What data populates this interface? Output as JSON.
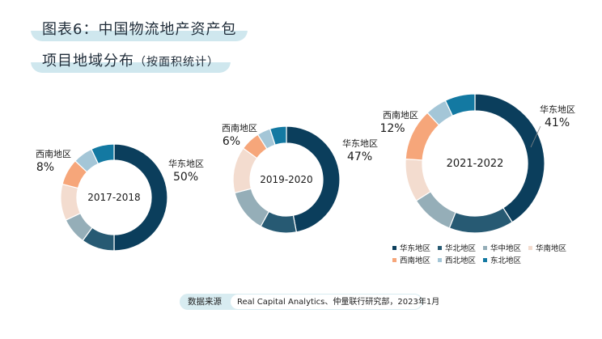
{
  "title": {
    "line1": "图表6：中国物流地产资产包",
    "line2_main": "项目地域分布",
    "line2_sub": "（按面积统计）"
  },
  "source": {
    "label": "数据来源",
    "text": "Real Capital Analytics、仲量联行研究部，2023年1月"
  },
  "colors": {
    "华东地区": "#0b3e5c",
    "华北地区": "#275a73",
    "华中地区": "#95aeb8",
    "华南地区": "#f3dccf",
    "西南地区": "#f6a67a",
    "西北地区": "#a4c6d7",
    "东北地区": "#1379a2"
  },
  "chart_data": [
    {
      "type": "pie",
      "donut": true,
      "center_label": "2017-2018",
      "categories": [
        "华东地区",
        "华北地区",
        "华中地区",
        "华南地区",
        "西南地区",
        "西北地区",
        "东北地区"
      ],
      "values": [
        50,
        10,
        8,
        11,
        8,
        6,
        7
      ],
      "labeled": [
        {
          "name": "华东地区",
          "value": "50%"
        },
        {
          "name": "西南地区",
          "value": "8%"
        }
      ]
    },
    {
      "type": "pie",
      "donut": true,
      "center_label": "2019-2020",
      "categories": [
        "华东地区",
        "华北地区",
        "华中地区",
        "华南地区",
        "西南地区",
        "西北地区",
        "东北地区"
      ],
      "values": [
        47,
        11,
        13,
        14,
        6,
        4,
        5
      ],
      "labeled": [
        {
          "name": "华东地区",
          "value": "47%"
        },
        {
          "name": "西南地区",
          "value": "6%"
        }
      ]
    },
    {
      "type": "pie",
      "donut": true,
      "center_label": "2021-2022",
      "categories": [
        "华东地区",
        "华北地区",
        "华中地区",
        "华南地区",
        "西南地区",
        "西北地区",
        "东北地区"
      ],
      "values": [
        41,
        15,
        10,
        10,
        12,
        5,
        7
      ],
      "labeled": [
        {
          "name": "华东地区",
          "value": "41%"
        },
        {
          "name": "西南地区",
          "value": "12%"
        }
      ],
      "legend": [
        "华东地区",
        "华北地区",
        "华中地区",
        "华南地区",
        "西南地区",
        "西北地区",
        "东北地区"
      ]
    }
  ]
}
